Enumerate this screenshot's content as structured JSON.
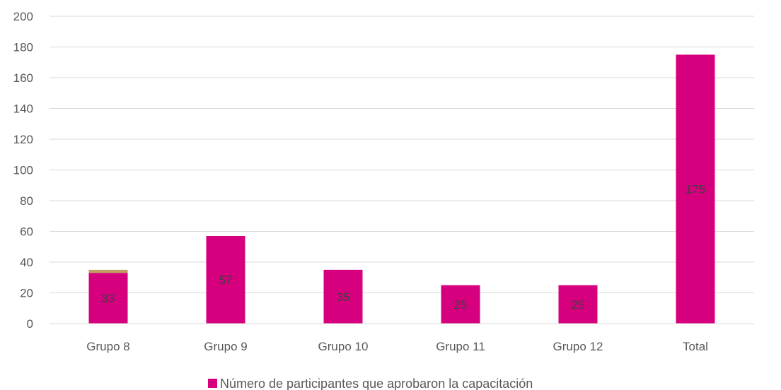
{
  "chart_data": {
    "type": "bar",
    "categories": [
      "Grupo 8",
      "Grupo 9",
      "Grupo 10",
      "Grupo 11",
      "Grupo 12",
      "Total"
    ],
    "series": [
      {
        "name": "Número de participantes que aprobaron la capacitación",
        "values": [
          33,
          57,
          35,
          25,
          25,
          175
        ],
        "color": "#D6007E"
      },
      {
        "values": [
          2,
          0,
          0,
          0,
          0,
          0
        ],
        "color": "#C0A060"
      }
    ],
    "data_labels": [
      "33",
      "57",
      "35",
      "25",
      "25",
      "175"
    ],
    "ylim": [
      0,
      200
    ],
    "yticks": [
      0,
      20,
      40,
      60,
      80,
      100,
      120,
      140,
      160,
      180,
      200
    ],
    "grid": true,
    "legend_position": "bottom"
  }
}
